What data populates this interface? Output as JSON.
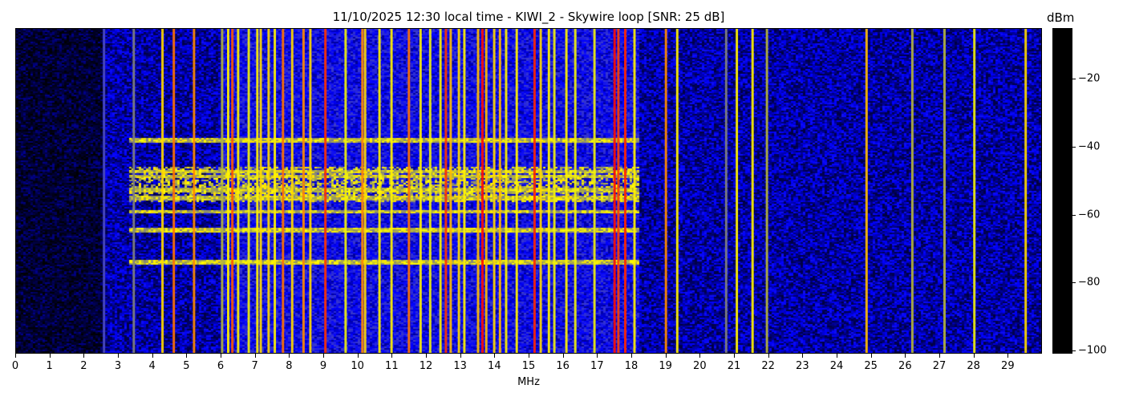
{
  "chart_data": {
    "type": "heatmap",
    "title": "11/10/2025 12:30 local time - KIWI_2 - Skywire loop [SNR: 25 dB]",
    "xlabel": "MHz",
    "xlim": [
      0,
      30
    ],
    "xticks": [
      0,
      1,
      2,
      3,
      4,
      5,
      6,
      7,
      8,
      9,
      10,
      11,
      12,
      13,
      14,
      15,
      16,
      17,
      18,
      19,
      20,
      21,
      22,
      23,
      24,
      25,
      26,
      27,
      28,
      29
    ],
    "colorbar": {
      "label": "dBm",
      "range": [
        -101,
        -5
      ],
      "ticks": [
        -20,
        -40,
        -60,
        -80,
        -100
      ],
      "colormap": [
        {
          "value": -101,
          "color": "#000000"
        },
        {
          "value": -92,
          "color": "#000050"
        },
        {
          "value": -84,
          "color": "#0000ff"
        },
        {
          "value": -77,
          "color": "#3c3cc8"
        },
        {
          "value": -72,
          "color": "#808080"
        },
        {
          "value": -66,
          "color": "#b4b43c"
        },
        {
          "value": -61,
          "color": "#ffff00"
        },
        {
          "value": -53,
          "color": "#ff9600"
        },
        {
          "value": -41,
          "color": "#ff0000"
        },
        {
          "value": -26,
          "color": "#ff00ff"
        },
        {
          "value": -5,
          "color": "#ffccff"
        }
      ]
    },
    "noise_floor": [
      {
        "from_mhz": 0,
        "to_mhz": 2.5,
        "dbm": -95
      },
      {
        "from_mhz": 2.5,
        "to_mhz": 6,
        "dbm": -88
      },
      {
        "from_mhz": 6,
        "to_mhz": 18.2,
        "dbm": -83
      },
      {
        "from_mhz": 18.2,
        "to_mhz": 30,
        "dbm": -88
      }
    ],
    "signals": [
      {
        "mhz": 2.57,
        "dbm": -76
      },
      {
        "mhz": 3.44,
        "dbm": -72
      },
      {
        "mhz": 4.28,
        "dbm": -58
      },
      {
        "mhz": 4.61,
        "dbm": -50
      },
      {
        "mhz": 5.2,
        "dbm": -52
      },
      {
        "mhz": 6.02,
        "dbm": -66
      },
      {
        "mhz": 6.2,
        "dbm": -60
      },
      {
        "mhz": 6.32,
        "dbm": -48
      },
      {
        "mhz": 6.49,
        "dbm": -60
      },
      {
        "mhz": 6.8,
        "dbm": -62
      },
      {
        "mhz": 7.05,
        "dbm": -60
      },
      {
        "mhz": 7.15,
        "dbm": -58
      },
      {
        "mhz": 7.38,
        "dbm": -58
      },
      {
        "mhz": 7.56,
        "dbm": -60
      },
      {
        "mhz": 7.8,
        "dbm": -50
      },
      {
        "mhz": 8.07,
        "dbm": -58
      },
      {
        "mhz": 8.4,
        "dbm": -52
      },
      {
        "mhz": 8.6,
        "dbm": -58
      },
      {
        "mhz": 9.04,
        "dbm": -45
      },
      {
        "mhz": 9.63,
        "dbm": -62
      },
      {
        "mhz": 10.12,
        "dbm": -52
      },
      {
        "mhz": 10.2,
        "dbm": -58
      },
      {
        "mhz": 10.62,
        "dbm": -60
      },
      {
        "mhz": 10.97,
        "dbm": -60
      },
      {
        "mhz": 11.48,
        "dbm": -50
      },
      {
        "mhz": 11.82,
        "dbm": -60
      },
      {
        "mhz": 12.1,
        "dbm": -62
      },
      {
        "mhz": 12.4,
        "dbm": -60
      },
      {
        "mhz": 12.56,
        "dbm": -45
      },
      {
        "mhz": 12.7,
        "dbm": -56
      },
      {
        "mhz": 12.94,
        "dbm": -58
      },
      {
        "mhz": 13.1,
        "dbm": -60
      },
      {
        "mhz": 13.5,
        "dbm": -56
      },
      {
        "mhz": 13.63,
        "dbm": -42
      },
      {
        "mhz": 13.74,
        "dbm": -56
      },
      {
        "mhz": 13.97,
        "dbm": -58
      },
      {
        "mhz": 14.14,
        "dbm": -56
      },
      {
        "mhz": 14.32,
        "dbm": -60
      },
      {
        "mhz": 14.63,
        "dbm": -60
      },
      {
        "mhz": 15.15,
        "dbm": -44
      },
      {
        "mhz": 15.33,
        "dbm": -58
      },
      {
        "mhz": 15.57,
        "dbm": -60
      },
      {
        "mhz": 15.73,
        "dbm": -62
      },
      {
        "mhz": 16.08,
        "dbm": -60
      },
      {
        "mhz": 16.34,
        "dbm": -62
      },
      {
        "mhz": 16.9,
        "dbm": -62
      },
      {
        "mhz": 17.49,
        "dbm": -42
      },
      {
        "mhz": 17.6,
        "dbm": -46
      },
      {
        "mhz": 17.8,
        "dbm": -44
      },
      {
        "mhz": 18.07,
        "dbm": -60
      },
      {
        "mhz": 18.99,
        "dbm": -52
      },
      {
        "mhz": 19.32,
        "dbm": -60
      },
      {
        "mhz": 20.75,
        "dbm": -72
      },
      {
        "mhz": 21.06,
        "dbm": -60
      },
      {
        "mhz": 21.52,
        "dbm": -60
      },
      {
        "mhz": 21.94,
        "dbm": -66
      },
      {
        "mhz": 24.85,
        "dbm": -56
      },
      {
        "mhz": 26.19,
        "dbm": -66
      },
      {
        "mhz": 27.13,
        "dbm": -66
      },
      {
        "mhz": 28.0,
        "dbm": -62
      },
      {
        "mhz": 29.5,
        "dbm": -58
      }
    ]
  }
}
